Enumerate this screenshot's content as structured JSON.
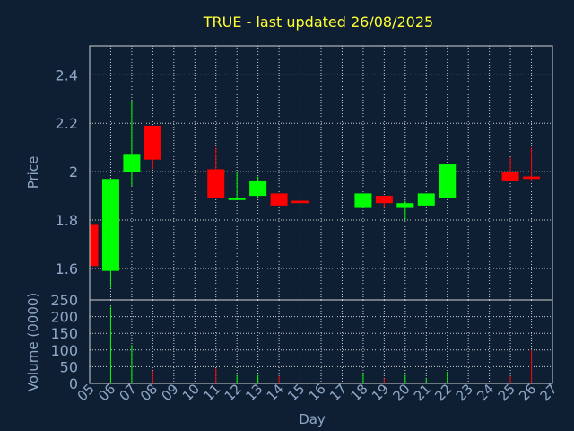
{
  "chart_data": {
    "type": "candlestick",
    "title": "TRUE - last updated 26/08/2025",
    "xlabel": "Day",
    "colors": {
      "background": "#0f1f33",
      "title": "#ffff33",
      "axis_text": "#8fa8c8",
      "grid": "#d0d0d0",
      "up": "#00ff00",
      "down": "#ff0000"
    },
    "x_ticks": [
      "05",
      "06",
      "07",
      "08",
      "09",
      "10",
      "11",
      "12",
      "13",
      "14",
      "15",
      "16",
      "17",
      "18",
      "19",
      "20",
      "21",
      "22",
      "23",
      "24",
      "25",
      "26",
      "27"
    ],
    "price": {
      "ylabel": "Price",
      "ylim": [
        1.47,
        2.52
      ],
      "ticks": [
        "1.6",
        "1.8",
        "2",
        "2.2",
        "2.4"
      ],
      "tick_values": [
        1.6,
        1.8,
        2.0,
        2.2,
        2.4
      ],
      "candles": [
        {
          "day": "05",
          "open": 1.78,
          "high": 1.78,
          "low": 1.61,
          "close": 1.61
        },
        {
          "day": "06",
          "open": 1.59,
          "high": 1.97,
          "low": 1.52,
          "close": 1.97
        },
        {
          "day": "07",
          "open": 2.0,
          "high": 2.29,
          "low": 1.94,
          "close": 2.07
        },
        {
          "day": "08",
          "open": 2.19,
          "high": 2.19,
          "low": 2.01,
          "close": 2.05
        },
        {
          "day": "11",
          "open": 2.01,
          "high": 2.1,
          "low": 1.89,
          "close": 1.89
        },
        {
          "day": "12",
          "open": 1.89,
          "high": 2.0,
          "low": 1.89,
          "close": 1.89
        },
        {
          "day": "13",
          "open": 1.9,
          "high": 1.98,
          "low": 1.89,
          "close": 1.96
        },
        {
          "day": "14",
          "open": 1.91,
          "high": 1.91,
          "low": 1.86,
          "close": 1.86
        },
        {
          "day": "15",
          "open": 1.88,
          "high": 1.89,
          "low": 1.8,
          "close": 1.87
        },
        {
          "day": "18",
          "open": 1.85,
          "high": 1.91,
          "low": 1.85,
          "close": 1.91
        },
        {
          "day": "19",
          "open": 1.9,
          "high": 1.9,
          "low": 1.85,
          "close": 1.87
        },
        {
          "day": "20",
          "open": 1.85,
          "high": 1.88,
          "low": 1.8,
          "close": 1.87
        },
        {
          "day": "21",
          "open": 1.86,
          "high": 1.91,
          "low": 1.86,
          "close": 1.91
        },
        {
          "day": "22",
          "open": 1.89,
          "high": 2.03,
          "low": 1.89,
          "close": 2.03
        },
        {
          "day": "25",
          "open": 2.0,
          "high": 2.06,
          "low": 1.96,
          "close": 1.96
        },
        {
          "day": "26",
          "open": 1.98,
          "high": 2.1,
          "low": 1.96,
          "close": 1.97
        }
      ]
    },
    "volume": {
      "ylabel": "Volume (0000)",
      "ylim": [
        0,
        250
      ],
      "ticks": [
        "0",
        "50",
        "100",
        "150",
        "200",
        "250"
      ],
      "tick_values": [
        0,
        50,
        100,
        150,
        200,
        250
      ],
      "bars": [
        {
          "day": "05",
          "value": 0,
          "dir": "down"
        },
        {
          "day": "06",
          "value": 230,
          "dir": "up"
        },
        {
          "day": "07",
          "value": 115,
          "dir": "up"
        },
        {
          "day": "08",
          "value": 38,
          "dir": "down"
        },
        {
          "day": "11",
          "value": 45,
          "dir": "down"
        },
        {
          "day": "12",
          "value": 25,
          "dir": "up"
        },
        {
          "day": "13",
          "value": 25,
          "dir": "up"
        },
        {
          "day": "14",
          "value": 22,
          "dir": "down"
        },
        {
          "day": "15",
          "value": 18,
          "dir": "down"
        },
        {
          "day": "18",
          "value": 28,
          "dir": "up"
        },
        {
          "day": "19",
          "value": 15,
          "dir": "down"
        },
        {
          "day": "20",
          "value": 25,
          "dir": "up"
        },
        {
          "day": "21",
          "value": 15,
          "dir": "up"
        },
        {
          "day": "22",
          "value": 35,
          "dir": "up"
        },
        {
          "day": "25",
          "value": 22,
          "dir": "down"
        },
        {
          "day": "26",
          "value": 100,
          "dir": "down"
        }
      ]
    }
  }
}
